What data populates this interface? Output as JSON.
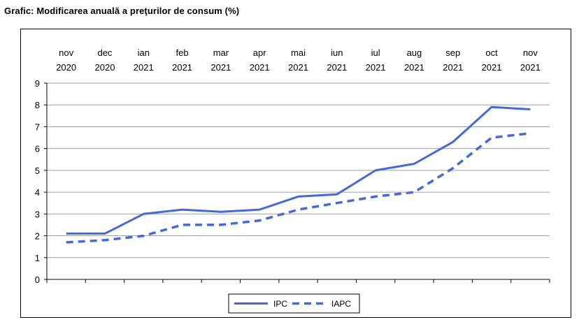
{
  "caption": "Grafic: Modificarea anuală a preţurilor de consum (%)",
  "chart_data": {
    "type": "line",
    "title": "Modificarea anuală a preţurilor de consum (%)",
    "categories": [
      [
        "nov",
        "2020"
      ],
      [
        "dec",
        "2020"
      ],
      [
        "ian",
        "2021"
      ],
      [
        "feb",
        "2021"
      ],
      [
        "mar",
        "2021"
      ],
      [
        "apr",
        "2021"
      ],
      [
        "mai",
        "2021"
      ],
      [
        "iun",
        "2021"
      ],
      [
        "iul",
        "2021"
      ],
      [
        "aug",
        "2021"
      ],
      [
        "sep",
        "2021"
      ],
      [
        "oct",
        "2021"
      ],
      [
        "nov",
        "2021"
      ]
    ],
    "ylim": [
      0,
      9
    ],
    "yticks": [
      0,
      1,
      2,
      3,
      4,
      5,
      6,
      7,
      8,
      9
    ],
    "grid": "horizontal",
    "legend_position": "bottom",
    "series": [
      {
        "name": "IPC",
        "color": "#4169E1",
        "style": "solid",
        "values": [
          2.1,
          2.1,
          3.0,
          3.2,
          3.1,
          3.2,
          3.8,
          3.9,
          5.0,
          5.3,
          6.3,
          7.9,
          7.8
        ]
      },
      {
        "name": "IAPC",
        "color": "#4169E1",
        "style": "dashed",
        "values": [
          1.7,
          1.8,
          2.0,
          2.5,
          2.5,
          2.7,
          3.2,
          3.5,
          3.8,
          4.0,
          5.1,
          6.5,
          6.7
        ]
      }
    ]
  }
}
